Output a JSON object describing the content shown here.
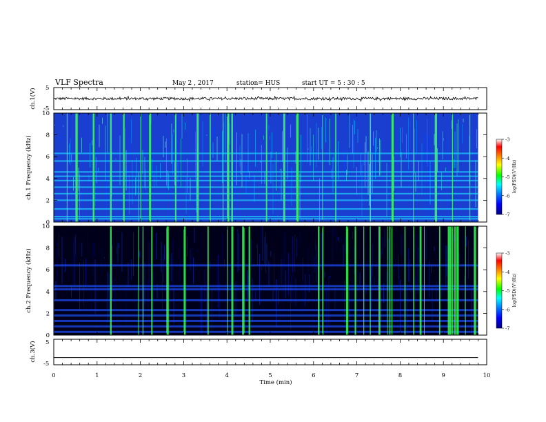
{
  "header": {
    "title": "VLF Spectra",
    "date": "May 2 , 2017",
    "station": "station= HUS",
    "start_ut": "start UT = 5 : 30 : 5"
  },
  "chart_data": [
    {
      "type": "line",
      "name": "ch1-waveform",
      "ylabel": "ch.1(V)",
      "xlim": [
        0,
        10
      ],
      "ylim": [
        -5,
        5
      ],
      "yticks": [
        "5",
        "-5"
      ],
      "baseline": 0,
      "amplitude": 0.6
    },
    {
      "type": "heatmap",
      "name": "ch1-spectrogram",
      "ylabel": "ch.1 Frequency (kHz)",
      "xlim": [
        0,
        10
      ],
      "ylim": [
        0,
        10
      ],
      "yticks": [
        "0",
        "2",
        "4",
        "6",
        "8",
        "10"
      ],
      "x_data_extent": [
        0,
        9.8
      ],
      "colorscale_range": [
        -7,
        -3
      ],
      "horizontal_bands_khz": [
        0.3,
        0.5,
        1.2,
        2.0,
        2.6,
        3.2,
        3.8,
        4.2,
        4.6,
        5.6,
        6.3
      ],
      "bright_times_min": [
        0.3,
        0.5,
        0.9,
        1.3,
        1.6,
        2.0,
        2.2,
        2.8,
        3.3,
        3.6,
        3.9,
        4.0,
        4.1,
        4.9,
        5.3,
        5.6,
        6.2,
        6.5,
        7.3,
        7.8,
        8.3,
        8.8,
        9.2,
        9.6
      ]
    },
    {
      "type": "heatmap",
      "name": "ch2-spectrogram",
      "ylabel": "ch.2 Frequency (kHz)",
      "xlim": [
        0,
        10
      ],
      "ylim": [
        0,
        10
      ],
      "yticks": [
        "0",
        "2",
        "4",
        "6",
        "8",
        "10"
      ],
      "x_data_extent": [
        0,
        9.8
      ],
      "colorscale_range": [
        -7,
        -3
      ],
      "horizontal_bands_khz": [
        0.3,
        0.8,
        1.3,
        1.8,
        2.3,
        3.2,
        4.2,
        4.5,
        6.4
      ],
      "bright_times_min": [
        1.3,
        1.95,
        2.05,
        2.25,
        2.6,
        3.0,
        3.55,
        4.0,
        4.1,
        4.35,
        4.5,
        6.1,
        6.2,
        6.75,
        6.95,
        7.15,
        7.3,
        7.5,
        7.7,
        7.75,
        7.8,
        8.1,
        8.3,
        8.45,
        8.55,
        8.9,
        9.1,
        9.15,
        9.2,
        9.25,
        9.3,
        9.5,
        9.7
      ]
    },
    {
      "type": "line",
      "name": "ch3-waveform",
      "ylabel": "ch.3(V)",
      "xlim": [
        0,
        10
      ],
      "ylim": [
        -5,
        5
      ],
      "yticks": [
        "5",
        "-5"
      ],
      "baseline": -2.2
    }
  ],
  "x_axis": {
    "label": "Time (min)",
    "ticks": [
      "0",
      "1",
      "2",
      "3",
      "4",
      "5",
      "6",
      "7",
      "8",
      "9",
      "10"
    ]
  },
  "colorbars": [
    {
      "label": "log(PSD)(V²/Hz)",
      "ticks": [
        "-3",
        "-4",
        "-5",
        "-6",
        "-7"
      ],
      "colors": [
        "#000080",
        "#0000ff",
        "#0080ff",
        "#00ffff",
        "#00ff00",
        "#ffff00",
        "#ff8000",
        "#ff0000",
        "#ffffff"
      ]
    },
    {
      "label": "log(PSD)(V²/Hz)",
      "ticks": [
        "-3",
        "-4",
        "-5",
        "-6",
        "-7"
      ],
      "colors": [
        "#000080",
        "#0000ff",
        "#0080ff",
        "#00ffff",
        "#00ff00",
        "#ffff00",
        "#ff8000",
        "#ff0000",
        "#ffffff"
      ]
    }
  ]
}
